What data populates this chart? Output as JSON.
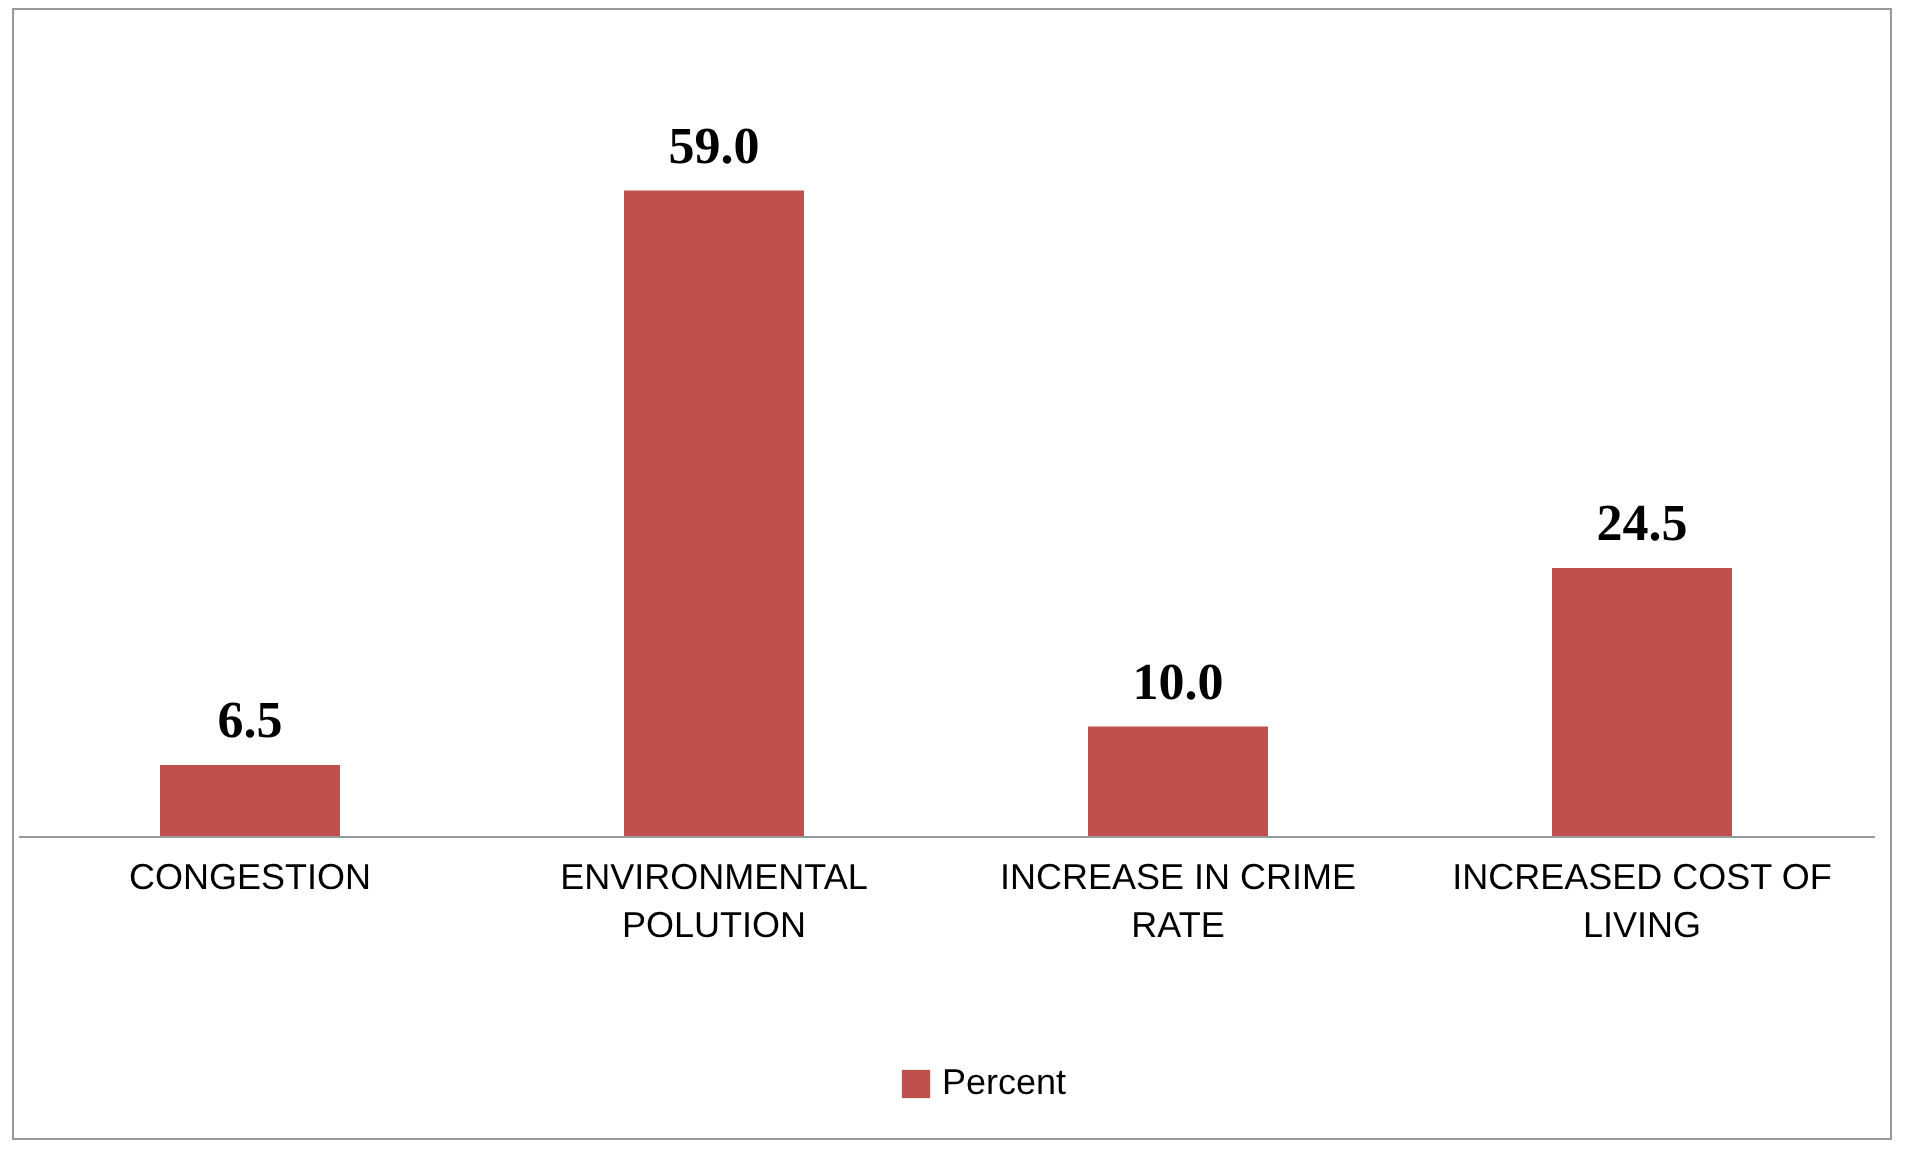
{
  "chart_data": {
    "type": "bar",
    "categories": [
      "CONGESTION",
      "ENVIRONMENTAL POLUTION",
      "INCREASE IN CRIME RATE",
      "INCREASED COST OF LIVING"
    ],
    "series": [
      {
        "name": "Percent",
        "color": "#c0504d",
        "values": [
          6.5,
          59.0,
          10.0,
          24.5
        ],
        "value_labels": [
          "6.5",
          "59.0",
          "10.0",
          "24.5"
        ]
      }
    ],
    "legend": "bottom",
    "grid": false
  }
}
